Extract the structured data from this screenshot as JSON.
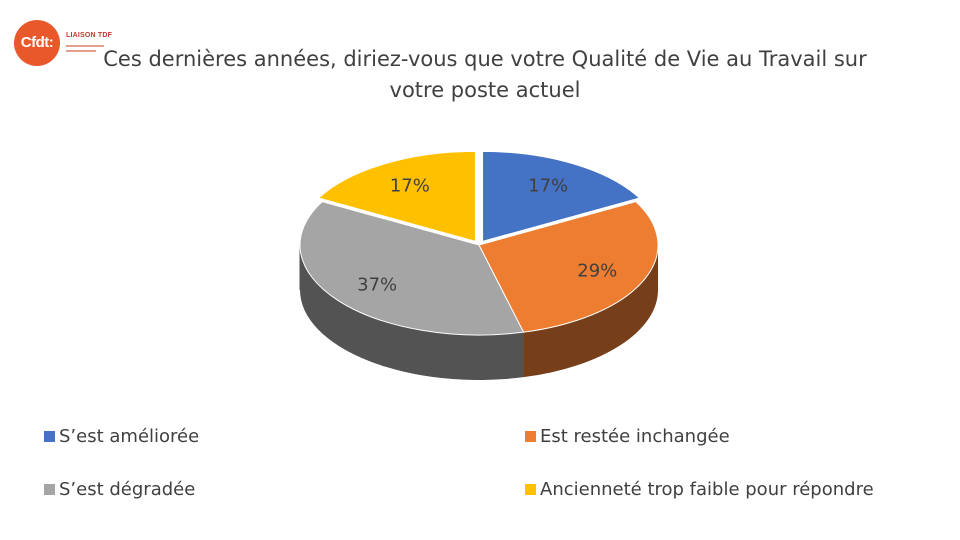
{
  "logo": {
    "mark": "Cfdt:",
    "name": "LIAISON TDF"
  },
  "chart_data": {
    "type": "pie",
    "title": "Ces dernières années, diriez-vous que votre Qualité de Vie au Travail sur votre poste actuel",
    "categories": [
      "S’est améliorée",
      "Est restée inchangée",
      "S’est dégradée",
      "Ancienneté trop faible pour répondre"
    ],
    "values": [
      17,
      29,
      37,
      17
    ],
    "labels": [
      "17%",
      "29%",
      "37%",
      "17%"
    ],
    "colors": [
      "#4472c4",
      "#ed7d31",
      "#a5a5a5",
      "#ffc000"
    ],
    "legend_position": "bottom",
    "exploded": [
      "S’est améliorée",
      "Ancienneté trop faible pour répondre"
    ]
  }
}
